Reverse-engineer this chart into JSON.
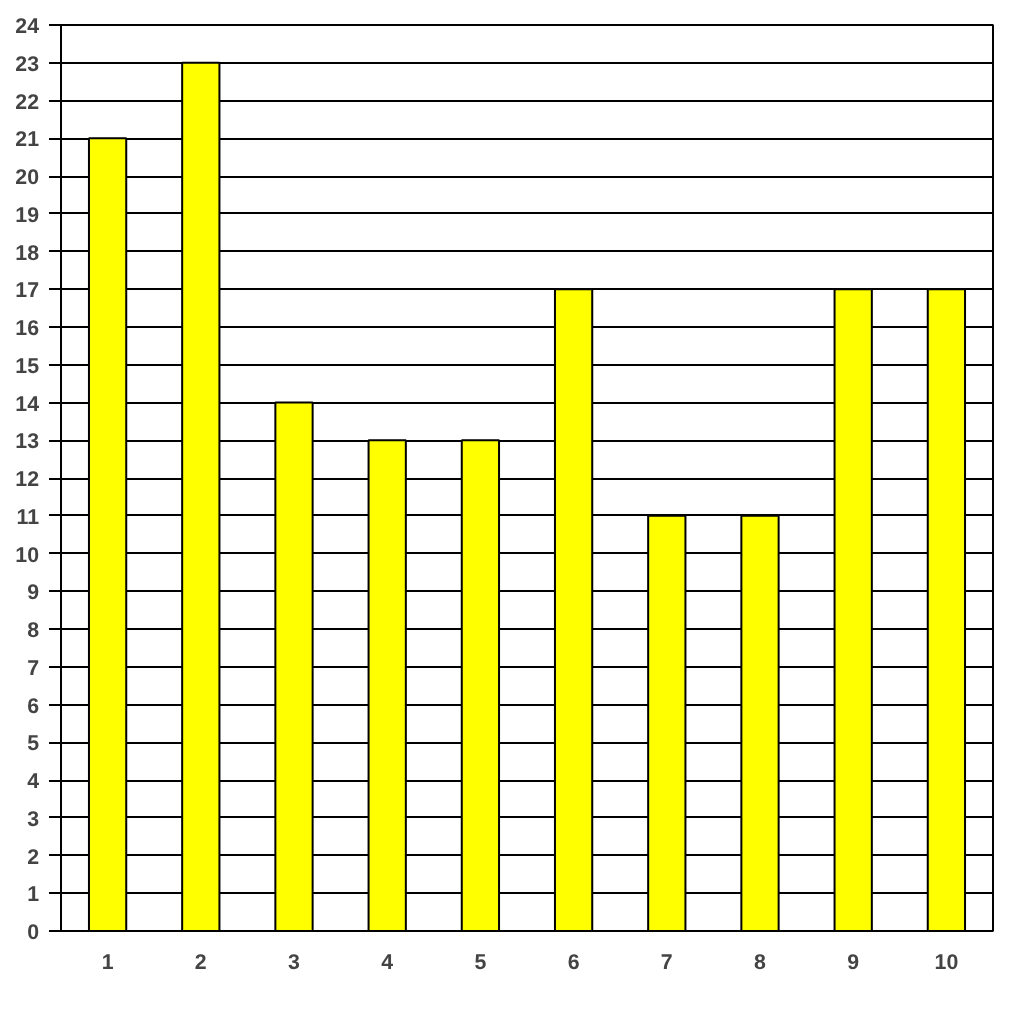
{
  "chart_data": {
    "type": "bar",
    "categories": [
      "1",
      "2",
      "3",
      "4",
      "5",
      "6",
      "7",
      "8",
      "9",
      "10"
    ],
    "values": [
      21,
      23,
      14,
      13,
      13,
      17,
      11,
      11,
      17,
      17
    ],
    "color": "#ffff00",
    "ylim": [
      0,
      24
    ],
    "yticks": [
      0,
      1,
      2,
      3,
      4,
      5,
      6,
      7,
      8,
      9,
      10,
      11,
      12,
      13,
      14,
      15,
      16,
      17,
      18,
      19,
      20,
      21,
      22,
      23,
      24
    ],
    "grid": "y",
    "legend": false
  }
}
